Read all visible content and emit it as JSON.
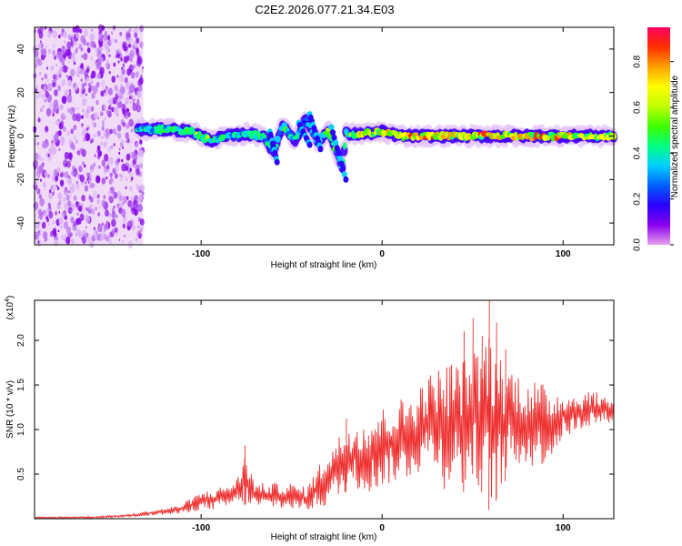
{
  "title": "C2E2.2026.077.21.34.E03",
  "chart_data": [
    {
      "type": "heatmap",
      "name": "spectrogram",
      "xlabel": "Height of straight line (km)",
      "ylabel": "Frequency (Hz)",
      "xlim": [
        -192,
        128
      ],
      "ylim": [
        -50,
        50
      ],
      "xticks": [
        -100,
        0,
        100
      ],
      "xtick_labels": [
        "-100",
        "0",
        "100"
      ],
      "yticks": [
        -40,
        -20,
        0,
        20,
        40
      ],
      "ytick_labels": [
        "-40",
        "-20",
        "0",
        "20",
        "40"
      ],
      "colorbar": {
        "label": "Normalized spectral amplitude",
        "range": [
          0,
          0.95
        ],
        "ticks": [
          0,
          0.2,
          0.4,
          0.6,
          0.8
        ],
        "tick_labels": [
          "0.0",
          "0.2",
          "0.4",
          "0.6",
          "0.8"
        ],
        "colors": [
          "#e8a0f0",
          "#8800ee",
          "#2a00ff",
          "#0060ff",
          "#00d0ff",
          "#00ff80",
          "#40ff00",
          "#c0ff00",
          "#ffff00",
          "#ffa000",
          "#ff3000",
          "#ff0060"
        ]
      },
      "noise_region": {
        "x": [
          -192,
          -132
        ],
        "y": [
          -50,
          50
        ],
        "amplitude": 0.1
      },
      "band": [
        {
          "x": -135,
          "y": 3,
          "amplitude": 0.35
        },
        {
          "x": -125,
          "y": 3,
          "amplitude": 0.45
        },
        {
          "x": -115,
          "y": 3,
          "amplitude": 0.45
        },
        {
          "x": -105,
          "y": 2,
          "amplitude": 0.5
        },
        {
          "x": -95,
          "y": -2,
          "amplitude": 0.5
        },
        {
          "x": -85,
          "y": 0,
          "amplitude": 0.45
        },
        {
          "x": -75,
          "y": 1,
          "amplitude": 0.4
        },
        {
          "x": -65,
          "y": 0,
          "amplitude": 0.5
        },
        {
          "x": -60,
          "y": -8,
          "amplitude": 0.35
        },
        {
          "x": -55,
          "y": 5,
          "amplitude": 0.45
        },
        {
          "x": -48,
          "y": -2,
          "amplitude": 0.45
        },
        {
          "x": -42,
          "y": 8,
          "amplitude": 0.35
        },
        {
          "x": -35,
          "y": -3,
          "amplitude": 0.4
        },
        {
          "x": -30,
          "y": 3,
          "amplitude": 0.5
        },
        {
          "x": -22,
          "y": -14,
          "amplitude": 0.35
        },
        {
          "x": -20,
          "y": 1,
          "amplitude": 0.5
        },
        {
          "x": -10,
          "y": 1,
          "amplitude": 0.75
        },
        {
          "x": 0,
          "y": 2,
          "amplitude": 0.65
        },
        {
          "x": 10,
          "y": 0,
          "amplitude": 0.7
        },
        {
          "x": 20,
          "y": 0,
          "amplitude": 0.8
        },
        {
          "x": 30,
          "y": 0,
          "amplitude": 0.75
        },
        {
          "x": 40,
          "y": 0,
          "amplitude": 0.7
        },
        {
          "x": 50,
          "y": 0,
          "amplitude": 0.75
        },
        {
          "x": 60,
          "y": 0,
          "amplitude": 0.8
        },
        {
          "x": 70,
          "y": 0,
          "amplitude": 0.7
        },
        {
          "x": 80,
          "y": 0,
          "amplitude": 0.75
        },
        {
          "x": 90,
          "y": 0,
          "amplitude": 0.8
        },
        {
          "x": 100,
          "y": 0,
          "amplitude": 0.7
        },
        {
          "x": 110,
          "y": 0,
          "amplitude": 0.65
        },
        {
          "x": 120,
          "y": 0,
          "amplitude": 0.6
        }
      ]
    },
    {
      "type": "line",
      "name": "snr",
      "xlabel": "Height of straight line (km)",
      "ylabel": "SNR (10 * v/v)",
      "yscale_label": "(x10",
      "yscale_exponent": "4",
      "yscale_close": ")",
      "xlim": [
        -192,
        128
      ],
      "ylim": [
        0,
        2.45
      ],
      "xticks": [
        -100,
        0,
        100
      ],
      "xtick_labels": [
        "-100",
        "0",
        "100"
      ],
      "yticks": [
        0.5,
        1.0,
        1.5,
        2.0
      ],
      "ytick_labels": [
        "0.5",
        "1.0",
        "1.5",
        "2.0"
      ],
      "color": "#ee3030",
      "envelope": {
        "x": [
          -192,
          -160,
          -140,
          -125,
          -112,
          -100,
          -90,
          -80,
          -76,
          -70,
          -60,
          -50,
          -42,
          -35,
          -30,
          -25,
          -20,
          -15,
          -10,
          -5,
          0,
          5,
          10,
          15,
          20,
          25,
          30,
          35,
          40,
          45,
          50,
          55,
          60,
          65,
          70,
          75,
          80,
          85,
          90,
          95,
          100,
          105,
          110,
          115,
          120,
          128
        ],
        "y": [
          0.02,
          0.03,
          0.05,
          0.1,
          0.15,
          0.3,
          0.35,
          0.45,
          0.75,
          0.4,
          0.4,
          0.4,
          0.35,
          0.6,
          0.8,
          0.9,
          1.05,
          1.1,
          1.1,
          1.2,
          1.25,
          1.3,
          1.35,
          1.4,
          1.5,
          1.6,
          1.7,
          1.75,
          1.8,
          1.8,
          1.85,
          2.0,
          2.2,
          1.85,
          1.75,
          1.65,
          1.6,
          1.55,
          1.5,
          1.45,
          1.45,
          1.4,
          1.4,
          1.45,
          1.4,
          1.35
        ],
        "min": [
          0.0,
          0.0,
          0.02,
          0.04,
          0.05,
          0.1,
          0.1,
          0.15,
          0.15,
          0.12,
          0.12,
          0.1,
          0.1,
          0.1,
          0.15,
          0.2,
          0.3,
          0.35,
          0.3,
          0.3,
          0.35,
          0.4,
          0.4,
          0.45,
          0.5,
          0.6,
          0.55,
          0.3,
          0.45,
          0.3,
          0.5,
          0.3,
          0.05,
          0.3,
          0.5,
          0.6,
          0.55,
          0.6,
          0.6,
          0.7,
          0.9,
          0.95,
          1.0,
          1.05,
          1.05,
          1.1
        ]
      },
      "peaks": [
        {
          "x": -76,
          "y": 0.82
        },
        {
          "x": -20,
          "y": 1.12
        },
        {
          "x": 45,
          "y": 2.1
        },
        {
          "x": 50,
          "y": 2.25
        },
        {
          "x": 55,
          "y": 2.05
        },
        {
          "x": 59,
          "y": 2.45
        },
        {
          "x": 63,
          "y": 2.2
        },
        {
          "x": 68,
          "y": 1.9
        }
      ]
    }
  ]
}
